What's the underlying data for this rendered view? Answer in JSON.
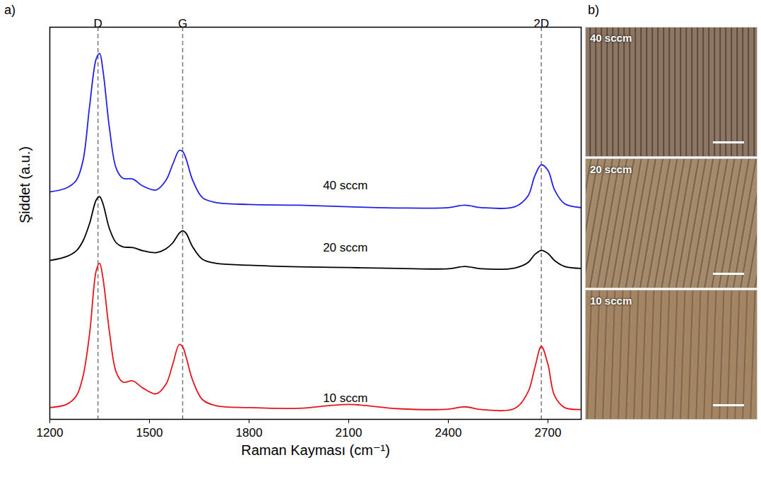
{
  "chart_data": {
    "type": "line",
    "panel_label": "a)",
    "x_label": "Raman Kayması (cm⁻¹)",
    "y_label": "Şiddet (a.u.)",
    "xlim": [
      1200,
      2800
    ],
    "xticks": [
      1200,
      1500,
      1800,
      2100,
      2400,
      2700
    ],
    "ylim": [
      0,
      100
    ],
    "tick_labels": "x",
    "x": [
      1200,
      1250,
      1280,
      1300,
      1320,
      1340,
      1350,
      1360,
      1380,
      1400,
      1420,
      1450,
      1480,
      1520,
      1550,
      1570,
      1590,
      1600,
      1610,
      1630,
      1660,
      1700,
      1800,
      1950,
      2100,
      2250,
      2400,
      2450,
      2500,
      2600,
      2640,
      2660,
      2680,
      2700,
      2720,
      2750,
      2800
    ],
    "series": [
      {
        "name": "40 sccm",
        "color": "#2020e8",
        "values": [
          58,
          59,
          61,
          66,
          80,
          92,
          93.3,
          89,
          74,
          64,
          61.5,
          61.3,
          59.5,
          58.5,
          61,
          65,
          68.6,
          68.3,
          66.5,
          61,
          56.5,
          55.3,
          54.8,
          54.6,
          54.2,
          53.9,
          54,
          54.6,
          54,
          54.2,
          57,
          62,
          64.9,
          63.5,
          58.5,
          55,
          54
        ]
      },
      {
        "name": "20 sccm",
        "color": "#000000",
        "values": [
          40.5,
          41.5,
          43,
          45.5,
          50,
          56,
          56.8,
          55,
          48.5,
          45,
          44,
          43.8,
          43,
          42.5,
          43.5,
          45,
          47.5,
          48.1,
          47.5,
          44,
          40.8,
          39.8,
          39.3,
          38.9,
          38.7,
          38.5,
          38.4,
          39,
          38.4,
          38.6,
          40,
          42,
          43.1,
          42.3,
          40.5,
          39,
          38.5
        ]
      },
      {
        "name": "10 sccm",
        "color": "#e8141c",
        "values": [
          3,
          3.8,
          6,
          11,
          22,
          38,
          39.8,
          36,
          22,
          12,
          9.5,
          9.8,
          8,
          6.5,
          9,
          14,
          19.1,
          18.5,
          16,
          10,
          5,
          3.5,
          3,
          2.8,
          3.8,
          2.7,
          2.6,
          3.2,
          2.5,
          2.8,
          7,
          13,
          18.6,
          14,
          6,
          3,
          2.5
        ]
      }
    ],
    "annotations": [
      {
        "text": "40 sccm",
        "x": 2090,
        "y": 57.8
      },
      {
        "text": "20 sccm",
        "x": 2090,
        "y": 42
      },
      {
        "text": "10 sccm",
        "x": 2090,
        "y": 3.6
      }
    ],
    "peaks": [
      {
        "label": "D",
        "x": 1345
      },
      {
        "label": "G",
        "x": 1600
      },
      {
        "label": "2D",
        "x": 2680
      }
    ]
  },
  "images": {
    "panel_label": "b)",
    "items": [
      "40 sccm",
      "20 sccm",
      "10 sccm"
    ]
  }
}
